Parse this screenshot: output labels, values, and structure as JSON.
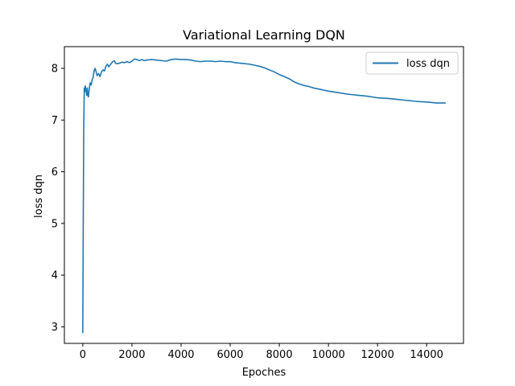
{
  "chart_data": {
    "type": "line",
    "title": "Variational Learning DQN",
    "xlabel": "Epoches",
    "ylabel": "loss dqn",
    "xlim": [
      -750,
      15500
    ],
    "ylim": [
      2.68,
      8.42
    ],
    "xticks": [
      0,
      2000,
      4000,
      6000,
      8000,
      10000,
      12000,
      14000
    ],
    "yticks": [
      3,
      4,
      5,
      6,
      7,
      8
    ],
    "grid": false,
    "legend_position": "top-right",
    "series": [
      {
        "name": "loss dqn",
        "color": "#1f77b4",
        "points": [
          [
            0,
            2.89
          ],
          [
            20,
            5.2
          ],
          [
            40,
            6.9
          ],
          [
            60,
            7.62
          ],
          [
            80,
            7.55
          ],
          [
            100,
            7.66
          ],
          [
            130,
            7.58
          ],
          [
            160,
            7.48
          ],
          [
            180,
            7.62
          ],
          [
            200,
            7.48
          ],
          [
            230,
            7.45
          ],
          [
            260,
            7.6
          ],
          [
            300,
            7.72
          ],
          [
            340,
            7.68
          ],
          [
            380,
            7.78
          ],
          [
            420,
            7.82
          ],
          [
            460,
            7.95
          ],
          [
            500,
            8.0
          ],
          [
            540,
            7.94
          ],
          [
            580,
            7.86
          ],
          [
            640,
            7.9
          ],
          [
            700,
            7.84
          ],
          [
            760,
            7.93
          ],
          [
            820,
            7.97
          ],
          [
            880,
            7.95
          ],
          [
            940,
            8.04
          ],
          [
            1000,
            8.08
          ],
          [
            1060,
            8.03
          ],
          [
            1120,
            8.07
          ],
          [
            1200,
            8.12
          ],
          [
            1280,
            8.15
          ],
          [
            1330,
            8.1
          ],
          [
            1400,
            8.09
          ],
          [
            1500,
            8.1
          ],
          [
            1600,
            8.12
          ],
          [
            1700,
            8.11
          ],
          [
            1800,
            8.13
          ],
          [
            1900,
            8.11
          ],
          [
            2000,
            8.14
          ],
          [
            2100,
            8.18
          ],
          [
            2200,
            8.17
          ],
          [
            2300,
            8.15
          ],
          [
            2400,
            8.17
          ],
          [
            2500,
            8.15
          ],
          [
            2600,
            8.16
          ],
          [
            2800,
            8.17
          ],
          [
            3000,
            8.16
          ],
          [
            3200,
            8.15
          ],
          [
            3400,
            8.14
          ],
          [
            3600,
            8.17
          ],
          [
            3800,
            8.18
          ],
          [
            4000,
            8.17
          ],
          [
            4200,
            8.17
          ],
          [
            4400,
            8.16
          ],
          [
            4600,
            8.14
          ],
          [
            4800,
            8.13
          ],
          [
            5000,
            8.14
          ],
          [
            5200,
            8.14
          ],
          [
            5400,
            8.13
          ],
          [
            5600,
            8.14
          ],
          [
            5800,
            8.13
          ],
          [
            6000,
            8.13
          ],
          [
            6200,
            8.11
          ],
          [
            6400,
            8.1
          ],
          [
            6600,
            8.09
          ],
          [
            6800,
            8.08
          ],
          [
            7000,
            8.06
          ],
          [
            7200,
            8.04
          ],
          [
            7400,
            8.01
          ],
          [
            7600,
            7.97
          ],
          [
            7800,
            7.93
          ],
          [
            8000,
            7.88
          ],
          [
            8200,
            7.84
          ],
          [
            8400,
            7.8
          ],
          [
            8600,
            7.74
          ],
          [
            8800,
            7.7
          ],
          [
            9000,
            7.67
          ],
          [
            9200,
            7.65
          ],
          [
            9400,
            7.62
          ],
          [
            9600,
            7.6
          ],
          [
            9800,
            7.58
          ],
          [
            10000,
            7.56
          ],
          [
            10400,
            7.53
          ],
          [
            10800,
            7.5
          ],
          [
            11200,
            7.48
          ],
          [
            11600,
            7.46
          ],
          [
            12000,
            7.43
          ],
          [
            12400,
            7.42
          ],
          [
            12800,
            7.4
          ],
          [
            13200,
            7.38
          ],
          [
            13600,
            7.36
          ],
          [
            14000,
            7.35
          ],
          [
            14400,
            7.33
          ],
          [
            14750,
            7.33
          ]
        ]
      }
    ]
  }
}
